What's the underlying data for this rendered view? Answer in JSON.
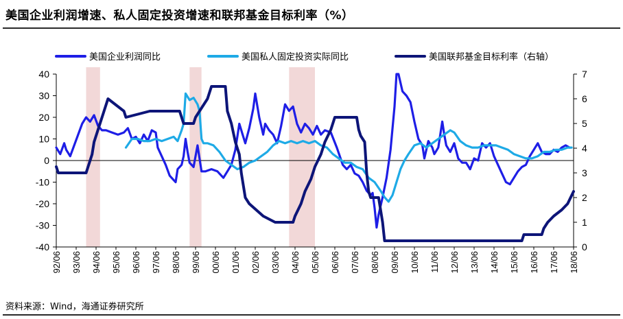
{
  "title": "美国企业利润增速、私人固定投资增速和联邦基金目标利率（%）",
  "source": "资料来源：Wind，海通证券研究所",
  "colors": {
    "profit": "#1e1ee6",
    "investment": "#1eaae6",
    "fedfunds": "#0d1578",
    "recession": "#f2d8d8",
    "axis": "#000000"
  },
  "chart_data": {
    "type": "line",
    "title": "美国企业利润增速、私人固定投资增速和联邦基金目标利率（%）",
    "xlabel": "",
    "ylabel_left": "",
    "ylabel_right": "",
    "ylim_left": [
      -40,
      40
    ],
    "ylim_right": [
      0,
      7
    ],
    "x_range": [
      1992.5,
      2018.5
    ],
    "left_ticks": [
      40,
      30,
      20,
      10,
      0,
      -10,
      -20,
      -30,
      -40
    ],
    "right_ticks": [
      7,
      6,
      5,
      4,
      3,
      2,
      1,
      0
    ],
    "x_ticks": [
      "92/06",
      "93/06",
      "94/06",
      "95/06",
      "96/06",
      "97/06",
      "98/06",
      "99/06",
      "00/06",
      "01/06",
      "02/06",
      "03/06",
      "04/06",
      "05/06",
      "06/06",
      "07/06",
      "08/06",
      "09/06",
      "10/06",
      "11/06",
      "12/06",
      "13/06",
      "14/06",
      "15/06",
      "16/06",
      "17/06",
      "18/06"
    ],
    "legend_position": "top",
    "recessions": [
      [
        1994.0,
        1994.7
      ],
      [
        1999.2,
        1999.8
      ],
      [
        2004.2,
        2005.5
      ]
    ],
    "series": [
      {
        "name": "美国企业利润同比",
        "axis": "left",
        "color": "#1e1ee6",
        "points": [
          [
            1992.5,
            6
          ],
          [
            1992.7,
            3
          ],
          [
            1992.9,
            8
          ],
          [
            1993.0,
            5
          ],
          [
            1993.2,
            2
          ],
          [
            1993.4,
            7
          ],
          [
            1993.6,
            12
          ],
          [
            1993.8,
            17
          ],
          [
            1994.0,
            20
          ],
          [
            1994.2,
            18
          ],
          [
            1994.4,
            21
          ],
          [
            1994.6,
            16
          ],
          [
            1994.8,
            14
          ],
          [
            1995.0,
            14
          ],
          [
            1995.3,
            13
          ],
          [
            1995.6,
            12
          ],
          [
            1995.9,
            13
          ],
          [
            1996.1,
            15
          ],
          [
            1996.3,
            10
          ],
          [
            1996.5,
            11
          ],
          [
            1996.7,
            8
          ],
          [
            1996.9,
            12
          ],
          [
            1997.1,
            9
          ],
          [
            1997.3,
            14
          ],
          [
            1997.5,
            13
          ],
          [
            1997.6,
            6
          ],
          [
            1997.8,
            2
          ],
          [
            1998.0,
            -2
          ],
          [
            1998.2,
            -7
          ],
          [
            1998.4,
            -9
          ],
          [
            1998.5,
            -10
          ],
          [
            1998.6,
            -4
          ],
          [
            1998.8,
            -2
          ],
          [
            1998.9,
            2
          ],
          [
            1999.0,
            10
          ],
          [
            1999.1,
            4
          ],
          [
            1999.2,
            -1
          ],
          [
            1999.4,
            -3
          ],
          [
            1999.6,
            7
          ],
          [
            1999.8,
            -5
          ],
          [
            2000.0,
            -5
          ],
          [
            2000.3,
            -4
          ],
          [
            2000.6,
            -5
          ],
          [
            2000.9,
            -8
          ],
          [
            2001.1,
            -5
          ],
          [
            2001.3,
            -2
          ],
          [
            2001.5,
            5
          ],
          [
            2001.7,
            17
          ],
          [
            2001.9,
            11
          ],
          [
            2002.0,
            8
          ],
          [
            2002.2,
            15
          ],
          [
            2002.4,
            24
          ],
          [
            2002.5,
            31
          ],
          [
            2002.7,
            20
          ],
          [
            2002.9,
            12
          ],
          [
            2003.0,
            17
          ],
          [
            2003.2,
            14
          ],
          [
            2003.4,
            12
          ],
          [
            2003.6,
            8
          ],
          [
            2003.8,
            16
          ],
          [
            2004.0,
            26
          ],
          [
            2004.2,
            23
          ],
          [
            2004.4,
            25
          ],
          [
            2004.6,
            17
          ],
          [
            2004.8,
            13
          ],
          [
            2005.0,
            17
          ],
          [
            2005.2,
            15
          ],
          [
            2005.4,
            12
          ],
          [
            2005.6,
            16
          ],
          [
            2005.8,
            12
          ],
          [
            2006.0,
            14
          ],
          [
            2006.3,
            13
          ],
          [
            2006.6,
            6
          ],
          [
            2006.9,
            -2
          ],
          [
            2007.1,
            -4
          ],
          [
            2007.3,
            -2
          ],
          [
            2007.5,
            -6
          ],
          [
            2007.7,
            -7
          ],
          [
            2007.9,
            -10
          ],
          [
            2008.1,
            -14
          ],
          [
            2008.3,
            -16
          ],
          [
            2008.4,
            -15
          ],
          [
            2008.5,
            -22
          ],
          [
            2008.6,
            -31
          ],
          [
            2008.7,
            -25
          ],
          [
            2008.9,
            -17
          ],
          [
            2009.1,
            -8
          ],
          [
            2009.3,
            5
          ],
          [
            2009.5,
            25
          ],
          [
            2009.6,
            42
          ],
          [
            2009.7,
            42
          ],
          [
            2009.8,
            36
          ],
          [
            2009.9,
            32
          ],
          [
            2010.1,
            30
          ],
          [
            2010.3,
            27
          ],
          [
            2010.5,
            18
          ],
          [
            2010.7,
            10
          ],
          [
            2010.9,
            7
          ],
          [
            2011.0,
            1
          ],
          [
            2011.2,
            9
          ],
          [
            2011.4,
            6
          ],
          [
            2011.5,
            3
          ],
          [
            2011.7,
            6
          ],
          [
            2011.9,
            18
          ],
          [
            2012.0,
            12
          ],
          [
            2012.1,
            7
          ],
          [
            2012.3,
            4
          ],
          [
            2012.5,
            8
          ],
          [
            2012.7,
            1
          ],
          [
            2012.9,
            -1
          ],
          [
            2013.1,
            -1
          ],
          [
            2013.3,
            -4
          ],
          [
            2013.5,
            1
          ],
          [
            2013.7,
            0
          ],
          [
            2013.9,
            8
          ],
          [
            2014.1,
            6
          ],
          [
            2014.3,
            8
          ],
          [
            2014.5,
            2
          ],
          [
            2014.7,
            -2
          ],
          [
            2014.9,
            -6
          ],
          [
            2015.1,
            -10
          ],
          [
            2015.3,
            -11
          ],
          [
            2015.5,
            -8
          ],
          [
            2015.7,
            -5
          ],
          [
            2015.9,
            -3
          ],
          [
            2016.1,
            -2
          ],
          [
            2016.3,
            2
          ],
          [
            2016.5,
            5
          ],
          [
            2016.7,
            8
          ],
          [
            2016.9,
            4
          ],
          [
            2017.1,
            3
          ],
          [
            2017.3,
            3
          ],
          [
            2017.5,
            5
          ],
          [
            2017.7,
            4
          ],
          [
            2017.9,
            6
          ],
          [
            2018.1,
            7
          ],
          [
            2018.3,
            6
          ]
        ]
      },
      {
        "name": "美国私人固定投资实际同比",
        "axis": "left",
        "color": "#1eaae6",
        "points": [
          [
            1996.0,
            6
          ],
          [
            1996.3,
            10
          ],
          [
            1996.6,
            10
          ],
          [
            1996.9,
            9
          ],
          [
            1997.2,
            9
          ],
          [
            1997.5,
            10
          ],
          [
            1997.8,
            9
          ],
          [
            1998.1,
            10
          ],
          [
            1998.4,
            11
          ],
          [
            1998.6,
            9
          ],
          [
            1998.8,
            14
          ],
          [
            1998.9,
            17
          ],
          [
            1999.0,
            31
          ],
          [
            1999.2,
            28
          ],
          [
            1999.4,
            29
          ],
          [
            1999.6,
            26
          ],
          [
            1999.7,
            23
          ],
          [
            1999.8,
            10
          ],
          [
            1999.9,
            8
          ],
          [
            2000.1,
            8
          ],
          [
            2000.4,
            7
          ],
          [
            2000.7,
            4
          ],
          [
            2001.0,
            0
          ],
          [
            2001.3,
            -2
          ],
          [
            2001.6,
            -4
          ],
          [
            2001.9,
            -3
          ],
          [
            2002.2,
            -1
          ],
          [
            2002.5,
            0
          ],
          [
            2002.8,
            2
          ],
          [
            2003.1,
            4
          ],
          [
            2003.4,
            7
          ],
          [
            2003.7,
            9
          ],
          [
            2004.0,
            8
          ],
          [
            2004.3,
            9
          ],
          [
            2004.6,
            8
          ],
          [
            2004.9,
            9
          ],
          [
            2005.2,
            8
          ],
          [
            2005.5,
            9
          ],
          [
            2005.8,
            7
          ],
          [
            2006.1,
            6
          ],
          [
            2006.4,
            3
          ],
          [
            2006.7,
            1
          ],
          [
            2007.0,
            -1
          ],
          [
            2007.3,
            -1
          ],
          [
            2007.6,
            -3
          ],
          [
            2007.9,
            -4
          ],
          [
            2008.2,
            -8
          ],
          [
            2008.5,
            -10
          ],
          [
            2008.8,
            -14
          ],
          [
            2009.0,
            -17
          ],
          [
            2009.2,
            -19
          ],
          [
            2009.4,
            -16
          ],
          [
            2009.6,
            -10
          ],
          [
            2009.8,
            -4
          ],
          [
            2010.0,
            0
          ],
          [
            2010.2,
            3
          ],
          [
            2010.5,
            7
          ],
          [
            2010.8,
            8
          ],
          [
            2011.1,
            6
          ],
          [
            2011.4,
            8
          ],
          [
            2011.7,
            10
          ],
          [
            2012.0,
            12
          ],
          [
            2012.3,
            14
          ],
          [
            2012.5,
            13
          ],
          [
            2012.8,
            9
          ],
          [
            2013.1,
            7
          ],
          [
            2013.4,
            6
          ],
          [
            2013.7,
            6
          ],
          [
            2014.0,
            7
          ],
          [
            2014.3,
            7
          ],
          [
            2014.6,
            7
          ],
          [
            2014.9,
            6
          ],
          [
            2015.2,
            5
          ],
          [
            2015.5,
            3
          ],
          [
            2015.8,
            2
          ],
          [
            2016.1,
            1
          ],
          [
            2016.4,
            1
          ],
          [
            2016.7,
            2
          ],
          [
            2017.0,
            4
          ],
          [
            2017.3,
            4
          ],
          [
            2017.6,
            5
          ],
          [
            2017.9,
            5
          ],
          [
            2018.2,
            6
          ],
          [
            2018.4,
            6
          ]
        ]
      },
      {
        "name": "美国联邦基金目标利率（右轴）",
        "axis": "right",
        "color": "#0d1578",
        "points": [
          [
            1992.5,
            3.25
          ],
          [
            1992.6,
            3.0
          ],
          [
            1993.8,
            3.0
          ],
          [
            1994.0,
            3.0
          ],
          [
            1994.1,
            3.25
          ],
          [
            1994.3,
            3.75
          ],
          [
            1994.4,
            4.25
          ],
          [
            1994.6,
            4.75
          ],
          [
            1994.9,
            5.5
          ],
          [
            1995.1,
            6.0
          ],
          [
            1995.5,
            5.75
          ],
          [
            1995.9,
            5.5
          ],
          [
            1996.0,
            5.25
          ],
          [
            1997.2,
            5.5
          ],
          [
            1998.7,
            5.5
          ],
          [
            1998.8,
            5.25
          ],
          [
            1998.9,
            5.0
          ],
          [
            1999.4,
            5.0
          ],
          [
            1999.5,
            5.25
          ],
          [
            1999.7,
            5.5
          ],
          [
            1999.9,
            5.75
          ],
          [
            2000.1,
            6.0
          ],
          [
            2000.3,
            6.5
          ],
          [
            2001.0,
            6.5
          ],
          [
            2001.1,
            5.5
          ],
          [
            2001.3,
            5.0
          ],
          [
            2001.5,
            4.25
          ],
          [
            2001.7,
            3.75
          ],
          [
            2001.8,
            3.0
          ],
          [
            2001.9,
            2.5
          ],
          [
            2002.0,
            2.0
          ],
          [
            2002.2,
            1.75
          ],
          [
            2002.9,
            1.25
          ],
          [
            2003.5,
            1.0
          ],
          [
            2004.4,
            1.0
          ],
          [
            2004.5,
            1.25
          ],
          [
            2004.8,
            1.75
          ],
          [
            2005.0,
            2.25
          ],
          [
            2005.3,
            2.75
          ],
          [
            2005.5,
            3.25
          ],
          [
            2005.8,
            3.75
          ],
          [
            2006.0,
            4.25
          ],
          [
            2006.3,
            4.75
          ],
          [
            2006.5,
            5.25
          ],
          [
            2007.6,
            5.25
          ],
          [
            2007.7,
            4.75
          ],
          [
            2007.8,
            4.5
          ],
          [
            2008.0,
            4.25
          ],
          [
            2008.1,
            3.0
          ],
          [
            2008.2,
            2.25
          ],
          [
            2008.3,
            2.0
          ],
          [
            2008.7,
            2.0
          ],
          [
            2008.8,
            1.5
          ],
          [
            2008.9,
            1.0
          ],
          [
            2009.0,
            0.25
          ],
          [
            2015.9,
            0.25
          ],
          [
            2016.0,
            0.5
          ],
          [
            2016.9,
            0.5
          ],
          [
            2017.0,
            0.75
          ],
          [
            2017.2,
            1.0
          ],
          [
            2017.5,
            1.25
          ],
          [
            2017.9,
            1.5
          ],
          [
            2018.2,
            1.75
          ],
          [
            2018.5,
            2.25
          ]
        ]
      }
    ]
  }
}
